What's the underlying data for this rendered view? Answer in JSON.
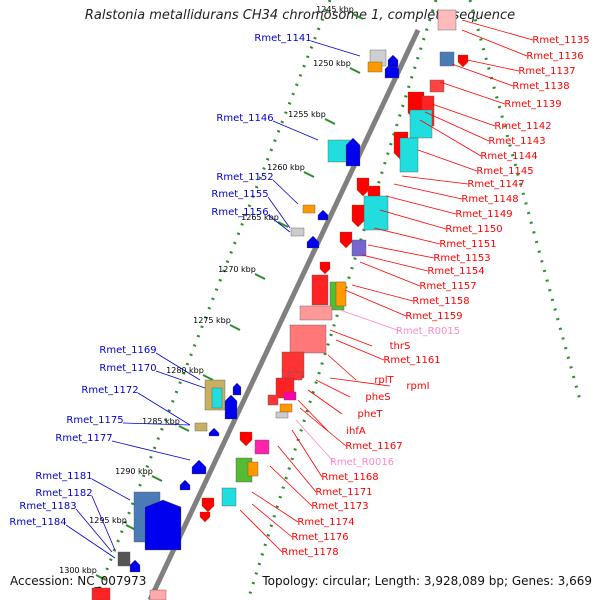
{
  "title": "Ralstonia metallidurans CH34 chromosome 1, complete sequence",
  "footer": {
    "accession": "Accession: NC_007973",
    "topology": "Topology: circular; Length: 3,928,089 bp; Genes: 3,669"
  },
  "kbp_labels": [
    "1245 kbp",
    "1250 kbp",
    "1255 kbp",
    "1260 kbp",
    "1265 kbp",
    "1270 kbp",
    "1275 kbp",
    "1280 kbp",
    "1285 kbp",
    "1290 kbp",
    "1295 kbp",
    "1300 kbp"
  ],
  "colors": {
    "backbone": "#808080",
    "dots": "#2e8b2e",
    "left_labels": "#0000cc",
    "right_labels": "#ff0000",
    "rna_labels": "#ff88cc",
    "forward_genes": "#0000ee",
    "reverse_genes": "#ff0000"
  },
  "left_labels": [
    "Rmet_1141",
    "Rmet_1146",
    "Rmet_1152",
    "Rmet_1155",
    "Rmet_1156",
    "Rmet_1169",
    "Rmet_1170",
    "Rmet_1172",
    "Rmet_1175",
    "Rmet_1177",
    "Rmet_1181",
    "Rmet_1182",
    "Rmet_1183",
    "Rmet_1184"
  ],
  "right_labels": [
    "Rmet_1135",
    "Rmet_1136",
    "Rmet_1137",
    "Rmet_1138",
    "Rmet_1139",
    "Rmet_1142",
    "Rmet_1143",
    "Rmet_1144",
    "Rmet_1145",
    "Rmet_1147",
    "Rmet_1148",
    "Rmet_1149",
    "Rmet_1150",
    "Rmet_1151",
    "Rmet_1153",
    "Rmet_1154",
    "Rmet_1157",
    "Rmet_1158",
    "Rmet_1159",
    "Rmet_R0015",
    "thrS",
    "Rmet_1161",
    "rplT",
    "rpmI",
    "pheS",
    "pheT",
    "ihfA",
    "Rmet_1167",
    "Rmet_R0016",
    "Rmet_1168",
    "Rmet_1171",
    "Rmet_1173",
    "Rmet_1174",
    "Rmet_1176",
    "Rmet_1178"
  ]
}
